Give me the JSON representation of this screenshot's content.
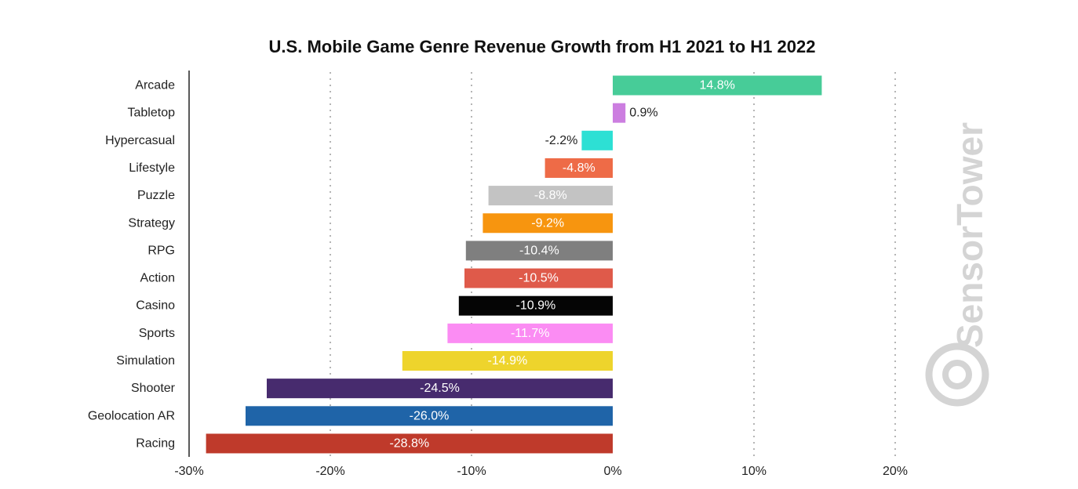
{
  "chart_data": {
    "type": "bar",
    "orientation": "horizontal",
    "title": "U.S. Mobile Game Genre Revenue Growth from H1 2021 to H1 2022",
    "xlabel": "",
    "ylabel": "",
    "xlim": [
      -30,
      20
    ],
    "x_ticks": [
      -30,
      -20,
      -10,
      0,
      10,
      20
    ],
    "x_tick_labels": [
      "-30%",
      "-20%",
      "-10%",
      "0%",
      "10%",
      "20%"
    ],
    "grid": "vertical dotted",
    "categories": [
      "Arcade",
      "Tabletop",
      "Hypercasual",
      "Lifestyle",
      "Puzzle",
      "Strategy",
      "RPG",
      "Action",
      "Casino",
      "Sports",
      "Simulation",
      "Shooter",
      "Geolocation AR",
      "Racing"
    ],
    "values": [
      14.8,
      0.9,
      -2.2,
      -4.8,
      -8.8,
      -9.2,
      -10.4,
      -10.5,
      -10.9,
      -11.7,
      -14.9,
      -24.5,
      -26.0,
      -28.8
    ],
    "value_labels": [
      "14.8%",
      "0.9%",
      "-2.2%",
      "-4.8%",
      "-8.8%",
      "-9.2%",
      "-10.4%",
      "-10.5%",
      "-10.9%",
      "-11.7%",
      "-14.9%",
      "-24.5%",
      "-26.0%",
      "-28.8%"
    ],
    "colors": [
      "#47cc98",
      "#cc7ee0",
      "#2de0d4",
      "#ee6b47",
      "#c3c3c3",
      "#f7950f",
      "#7f7f7f",
      "#df5a4a",
      "#050505",
      "#fb8cf3",
      "#eed42c",
      "#472b6e",
      "#1f64a8",
      "#bf3a2b"
    ],
    "label_inside": [
      true,
      false,
      false,
      true,
      true,
      true,
      true,
      true,
      true,
      true,
      true,
      true,
      true,
      true
    ],
    "watermark": "SensorTower"
  }
}
